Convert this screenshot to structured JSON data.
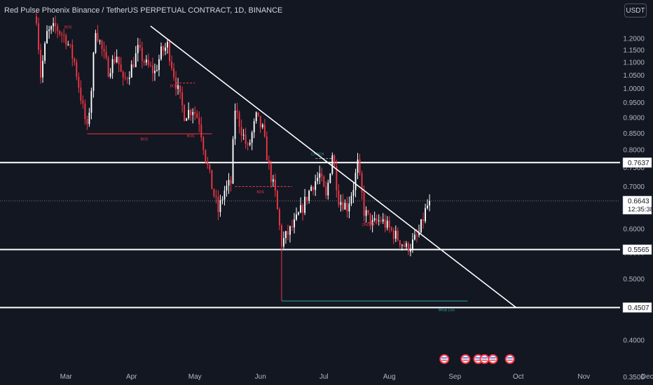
{
  "header": {
    "symbol_title": "Red Pulse Phoenix Binance / TetherUS PERPETUAL CONTRACT, 1D, BINANCE",
    "currency": "USDT"
  },
  "colors": {
    "background": "#131722",
    "up": "#ffffff",
    "down": "#f23645",
    "line": "#ffffff",
    "bos": "#f23645",
    "weak_low": "#26a69a",
    "price_tag_bg": "#ffffff",
    "price_tag_text": "#131722"
  },
  "chart_data": {
    "type": "candlestick",
    "scale": "log",
    "ylim": [
      0.34,
      1.38
    ],
    "y_ticks": [
      "1.2000",
      "1.1500",
      "1.1000",
      "1.0500",
      "1.0000",
      "0.9500",
      "0.9000",
      "0.8500",
      "0.8000",
      "0.7500",
      "0.7000",
      "0.6500",
      "0.6000",
      "0.5500",
      "0.5000",
      "0.4500",
      "0.4000",
      "0.3500"
    ],
    "x_range": [
      "2022-02-15",
      "2022-12-15"
    ],
    "x_ticks": [
      {
        "label": "Mar",
        "date": "2022-03-01"
      },
      {
        "label": "Apr",
        "date": "2022-04-01"
      },
      {
        "label": "May",
        "date": "2022-05-01"
      },
      {
        "label": "Jun",
        "date": "2022-06-01"
      },
      {
        "label": "Jul",
        "date": "2022-07-01"
      },
      {
        "label": "Aug",
        "date": "2022-08-01"
      },
      {
        "label": "Sep",
        "date": "2022-09-01"
      },
      {
        "label": "Oct",
        "date": "2022-10-01"
      },
      {
        "label": "Nov",
        "date": "2022-11-01"
      },
      {
        "label": "Dec",
        "date": "2022-12-01"
      }
    ],
    "price_path": [
      [
        "2022-02-15",
        1.3
      ],
      [
        "2022-02-17",
        1.05
      ],
      [
        "2022-02-20",
        1.22
      ],
      [
        "2022-02-24",
        1.25
      ],
      [
        "2022-03-01",
        1.2
      ],
      [
        "2022-03-05",
        1.1
      ],
      [
        "2022-03-09",
        0.93
      ],
      [
        "2022-03-11",
        0.86
      ],
      [
        "2022-03-13",
        1.0
      ],
      [
        "2022-03-15",
        1.25
      ],
      [
        "2022-03-18",
        1.15
      ],
      [
        "2022-03-21",
        1.07
      ],
      [
        "2022-03-25",
        1.13
      ],
      [
        "2022-03-28",
        1.02
      ],
      [
        "2022-04-01",
        1.08
      ],
      [
        "2022-04-04",
        1.15
      ],
      [
        "2022-04-08",
        1.09
      ],
      [
        "2022-04-12",
        1.06
      ],
      [
        "2022-04-15",
        1.14
      ],
      [
        "2022-04-18",
        1.17
      ],
      [
        "2022-04-22",
        1.02
      ],
      [
        "2022-04-26",
        0.91
      ],
      [
        "2022-04-30",
        0.93
      ],
      [
        "2022-05-03",
        0.89
      ],
      [
        "2022-05-06",
        0.78
      ],
      [
        "2022-05-09",
        0.7
      ],
      [
        "2022-05-12",
        0.64
      ],
      [
        "2022-05-15",
        0.69
      ],
      [
        "2022-05-18",
        0.71
      ],
      [
        "2022-05-20",
        0.93
      ],
      [
        "2022-05-23",
        0.86
      ],
      [
        "2022-05-26",
        0.8
      ],
      [
        "2022-05-30",
        0.9
      ],
      [
        "2022-06-02",
        0.86
      ],
      [
        "2022-06-05",
        0.75
      ],
      [
        "2022-06-08",
        0.68
      ],
      [
        "2022-06-11",
        0.57
      ],
      [
        "2022-06-14",
        0.59
      ],
      [
        "2022-06-17",
        0.61
      ],
      [
        "2022-06-21",
        0.65
      ],
      [
        "2022-06-25",
        0.7
      ],
      [
        "2022-06-29",
        0.73
      ],
      [
        "2022-07-02",
        0.67
      ],
      [
        "2022-07-05",
        0.79
      ],
      [
        "2022-07-08",
        0.67
      ],
      [
        "2022-07-12",
        0.65
      ],
      [
        "2022-07-15",
        0.7
      ],
      [
        "2022-07-17",
        0.76
      ],
      [
        "2022-07-20",
        0.64
      ],
      [
        "2022-07-24",
        0.61
      ],
      [
        "2022-07-28",
        0.62
      ],
      [
        "2022-08-01",
        0.6
      ],
      [
        "2022-08-05",
        0.58
      ],
      [
        "2022-08-09",
        0.56
      ],
      [
        "2022-08-12",
        0.57
      ],
      [
        "2022-08-15",
        0.59
      ],
      [
        "2022-08-18",
        0.64
      ],
      [
        "2022-08-20",
        0.6643
      ]
    ],
    "horizontal_levels": [
      0.7637,
      0.5565,
      0.4507
    ],
    "price_labels": [
      {
        "text": "0.7637",
        "value": 0.7637
      },
      {
        "text": "0.6643",
        "value": 0.6643,
        "sub": "12:35:38"
      },
      {
        "text": "0.5565",
        "value": 0.5565
      },
      {
        "text": "0.4507",
        "value": 0.4507
      }
    ],
    "last_price": 0.6643,
    "countdown": "12:35:38",
    "trendline": {
      "from": [
        "2022-04-10",
        1.255
      ],
      "to": [
        "2022-09-30",
        0.4507
      ]
    },
    "annotations": [
      {
        "text": "BOS",
        "date": "2022-03-02",
        "value": 1.245,
        "color": "#f23645"
      },
      {
        "text": "BOS",
        "date": "2022-04-21",
        "value": 1.005,
        "color": "#f23645"
      },
      {
        "text": "BOS",
        "date": "2022-04-07",
        "value": 0.828,
        "color": "#f23645"
      },
      {
        "text": "BOS",
        "date": "2022-04-29",
        "value": 0.838,
        "color": "#f23645"
      },
      {
        "text": "BOS",
        "date": "2022-06-01",
        "value": 0.683,
        "color": "#f23645"
      },
      {
        "text": "CHOCH",
        "date": "2022-06-28",
        "value": 0.784,
        "color": "#26a69a"
      },
      {
        "text": "CHOCH",
        "date": "2022-07-22",
        "value": 0.606,
        "color": "#f23645"
      },
      {
        "text": "Weak Low",
        "date": "2022-08-28",
        "value": 0.445,
        "color": "#26a69a"
      }
    ],
    "event_markers": [
      "2022-08-27",
      "2022-09-06",
      "2022-09-12",
      "2022-09-15",
      "2022-09-19",
      "2022-09-27"
    ]
  }
}
